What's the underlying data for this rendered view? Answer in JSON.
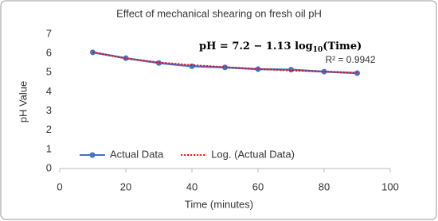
{
  "chart_data": {
    "type": "line",
    "title": "Effect of mechanical shearing on fresh oil pH",
    "x_label": "Time (minutes)",
    "y_label": "pH Value",
    "x": [
      10,
      20,
      30,
      40,
      50,
      60,
      70,
      80,
      90
    ],
    "series": [
      {
        "name": "Actual Data",
        "color": "#4472c4",
        "style": "solid",
        "marker": true,
        "values": [
          6.05,
          5.75,
          5.5,
          5.33,
          5.27,
          5.18,
          5.15,
          5.05,
          4.97
        ]
      },
      {
        "name": "Log. (Actual Data)",
        "color": "#ff0000",
        "style": "dotted",
        "marker": false,
        "values": [
          6.07,
          5.73,
          5.53,
          5.39,
          5.28,
          5.19,
          5.11,
          5.05,
          4.99
        ]
      }
    ],
    "annotations": {
      "equation": [
        "pH = 7.2 − 1.13 log",
        "10",
        "(Time)"
      ],
      "r_squared": "R² = 0.9942"
    },
    "xlim": [
      0,
      100
    ],
    "xticks": [
      0,
      20,
      40,
      60,
      80,
      100
    ],
    "ylim": [
      0,
      7
    ],
    "yticks": [
      0,
      1,
      2,
      3,
      4,
      5,
      6,
      7
    ],
    "grid": false,
    "legend": "bottom-left"
  }
}
